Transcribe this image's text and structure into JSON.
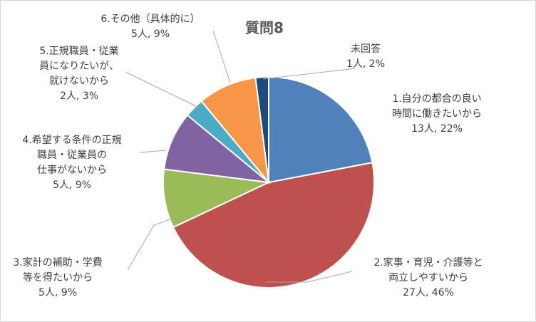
{
  "chart_data": {
    "type": "pie",
    "title": "質問8",
    "slices": [
      {
        "label": [
          "1.自分の都合の良い",
          "時間に働きたいから"
        ],
        "count": "13人",
        "percent": "22%",
        "value": 22,
        "color": "#4f81bd"
      },
      {
        "label": [
          "2.家事・育児・介護等と",
          "両立しやすいから"
        ],
        "count": "27人",
        "percent": "46%",
        "value": 46,
        "color": "#c0504d"
      },
      {
        "label": [
          "3.家計の補助・学費",
          "等を得たいから"
        ],
        "count": "5人",
        "percent": "9%",
        "value": 9,
        "color": "#9bbb59"
      },
      {
        "label": [
          "4.希望する条件の正規",
          "職員・従業員の",
          "仕事がないから"
        ],
        "count": "5人",
        "percent": "9%",
        "value": 9,
        "color": "#8064a2"
      },
      {
        "label": [
          "5.正規職員・従業",
          "員になりたいが、",
          "就けないから"
        ],
        "count": "2人",
        "percent": "3%",
        "value": 3,
        "color": "#4bacc6"
      },
      {
        "label": [
          "6.その他（具体的に）"
        ],
        "count": "5人",
        "percent": "9%",
        "value": 9,
        "color": "#f79646"
      },
      {
        "label": [
          "未回答"
        ],
        "count": "1人",
        "percent": "2%",
        "value": 2,
        "color": "#1f497d"
      }
    ],
    "legend": "none"
  }
}
